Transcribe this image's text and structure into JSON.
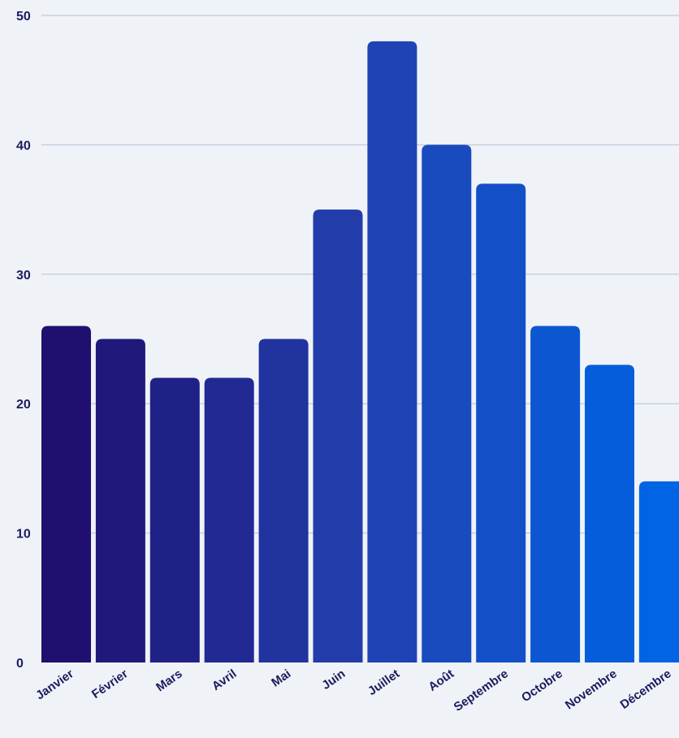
{
  "chart_data": {
    "type": "bar",
    "title": "",
    "xlabel": "",
    "ylabel": "",
    "categories": [
      "Janvier",
      "Février",
      "Mars",
      "Avril",
      "Mai",
      "Juin",
      "Juillet",
      "Août",
      "Septembre",
      "Octobre",
      "Novembre",
      "Décembre"
    ],
    "values": [
      26,
      25,
      22,
      22,
      25,
      35,
      48,
      40,
      37,
      26,
      23,
      14
    ],
    "ylim": [
      0,
      50
    ],
    "yticks": [
      "0",
      "10",
      "20",
      "30",
      "40",
      "50"
    ],
    "grid": true,
    "legend": "none",
    "colors": {
      "background": "#eff2f7",
      "grid": "#b9bed6",
      "text": "#1d1b5e",
      "bar_gradient_start": "#1f0f6f",
      "bar_gradient_mid": "#2240b0",
      "bar_gradient_end": "#0064e4"
    }
  }
}
